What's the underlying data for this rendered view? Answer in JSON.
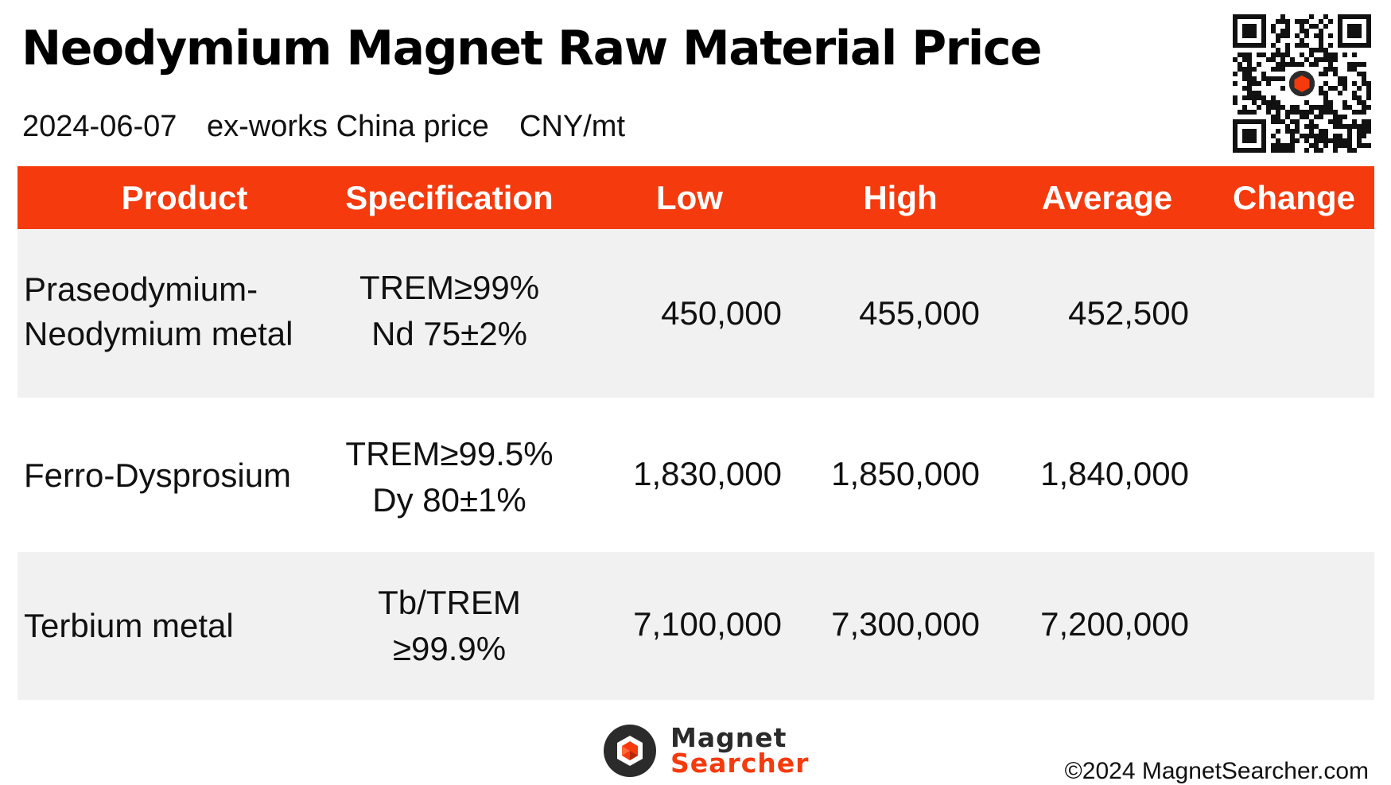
{
  "header": {
    "title": "Neodymium Magnet Raw Material Price",
    "date": "2024-06-07",
    "basis": "ex-works China price",
    "unit": "CNY/mt"
  },
  "table": {
    "columns": [
      "Product",
      "Specification",
      "Low",
      "High",
      "Average",
      "Change"
    ],
    "rows": [
      {
        "product": [
          "Praseodymium-",
          "Neodymium metal"
        ],
        "spec": [
          "TREM≥99%",
          "Nd 75±2%"
        ],
        "low": "450,000",
        "high": "455,000",
        "average": "452,500",
        "change": ""
      },
      {
        "product": [
          "Ferro-Dysprosium"
        ],
        "spec": [
          "TREM≥99.5%",
          "Dy 80±1%"
        ],
        "low": "1,830,000",
        "high": "1,850,000",
        "average": "1,840,000",
        "change": ""
      },
      {
        "product": [
          "Terbium metal"
        ],
        "spec": [
          "Tb/TREM",
          "≥99.9%"
        ],
        "low": "7,100,000",
        "high": "7,300,000",
        "average": "7,200,000",
        "change": ""
      }
    ]
  },
  "footer": {
    "logo_line1": "Magnet",
    "logo_line2": "Searcher",
    "copyright": "©2024 MagnetSearcher.com"
  },
  "colors": {
    "accent": "#f53a0d",
    "row_shade": "#f1f1f1",
    "text": "#111111"
  },
  "icons": {
    "qr": "qr-code-icon",
    "logo": "magnet-searcher-logo-icon"
  }
}
